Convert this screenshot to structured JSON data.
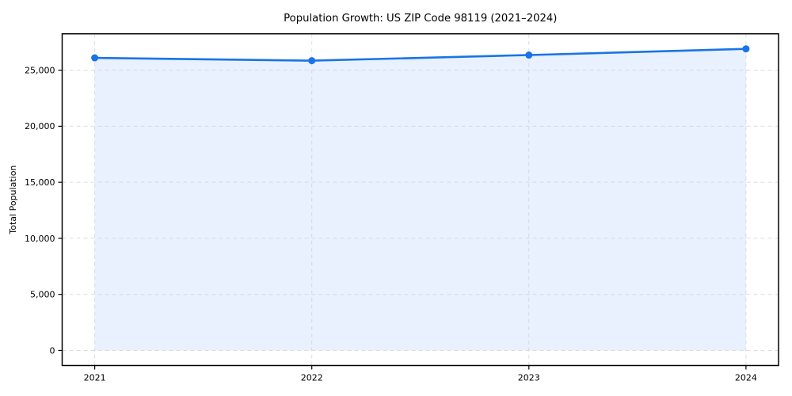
{
  "chart_data": {
    "type": "line",
    "title": "Population Growth: US ZIP Code 98119 (2021–2024)",
    "xlabel": "",
    "ylabel": "Total Population",
    "x": [
      2021,
      2022,
      2023,
      2024
    ],
    "x_tick_labels": [
      "2021",
      "2022",
      "2023",
      "2024"
    ],
    "series": [
      {
        "name": "Total Population",
        "values": [
          26100,
          25850,
          26350,
          26900
        ]
      }
    ],
    "yticks": [
      0,
      5000,
      10000,
      15000,
      20000,
      25000
    ],
    "ytick_labels": [
      "0",
      "5,000",
      "10,000",
      "15,000",
      "20,000",
      "25,000"
    ],
    "ylim": [
      -1345,
      28245
    ],
    "x_margin_frac": 0.05,
    "grid": true,
    "grid_style": "dashed",
    "area_fill_to": 0,
    "legend": null,
    "colors": {
      "line": "#1a73e8",
      "marker": "#1a73e8",
      "area_fill": "rgba(26,115,232,0.10)",
      "grid": "#d2d2d2",
      "spine": "#000000",
      "background": "#ffffff",
      "text": "#000000"
    }
  }
}
